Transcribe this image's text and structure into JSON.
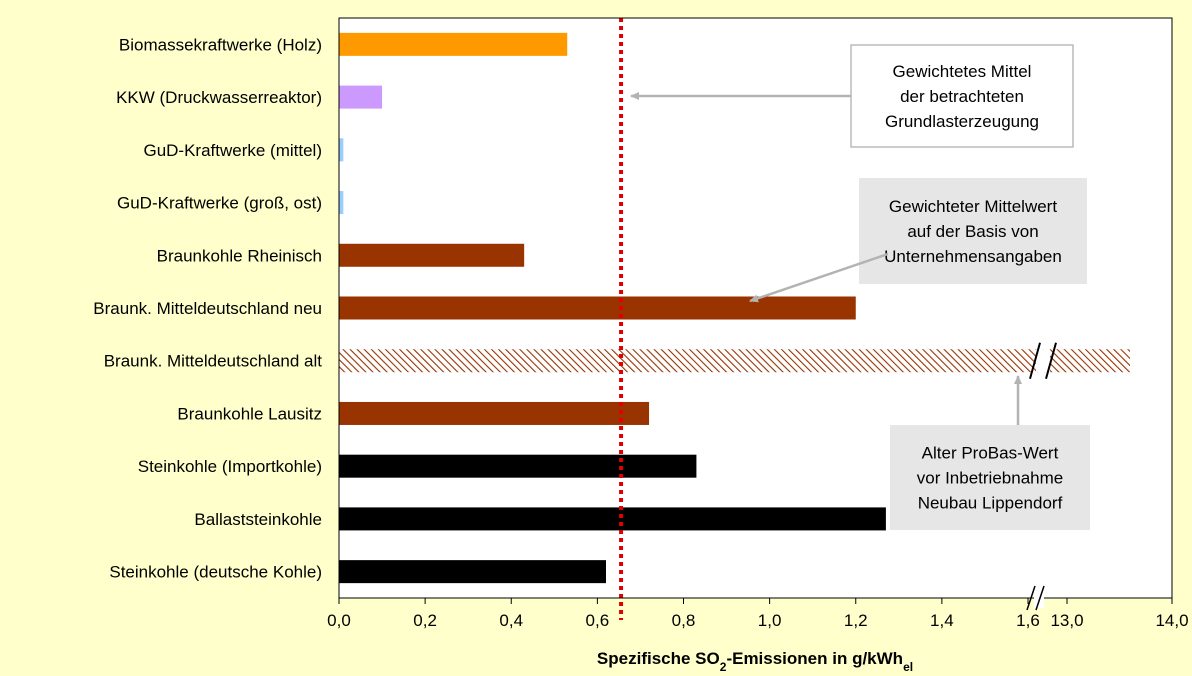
{
  "chart_data": {
    "type": "bar",
    "orientation": "horizontal",
    "xlabel": "Spezifische SO",
    "xlabel_sub": "2",
    "xlabel_rest": "-Emissionen in g/kWh",
    "xlabel_unit_sub": "el",
    "axis_break": "between 1.6 and 13.0",
    "x_ticks": [
      "0,0",
      "0,2",
      "0,4",
      "0,6",
      "0,8",
      "1,0",
      "1,2",
      "1,4",
      "1,6",
      "13,0",
      "14,0"
    ],
    "xlim": [
      0,
      14.0
    ],
    "grid": false,
    "categories": [
      "Biomassekraftwerke (Holz)",
      "KKW (Druckwasserreaktor)",
      "GuD-Kraftwerke (mittel)",
      "GuD-Kraftwerke (groß, ost)",
      "Braunkohle Rheinisch",
      "Braunk. Mitteldeutschland neu",
      "Braunk. Mitteldeutschland alt",
      "Braunkohle Lausitz",
      "Steinkohle (Importkohle)",
      "Ballaststeinkohle",
      "Steinkohle (deutsche Kohle)"
    ],
    "values": [
      0.53,
      0.1,
      0.01,
      0.01,
      0.43,
      1.2,
      13.6,
      0.72,
      0.83,
      1.27,
      0.62
    ],
    "bar_colors": [
      "#ff9900",
      "#cc99ff",
      "#99ccff",
      "#99ccff",
      "#993300",
      "#993300",
      "#993300",
      "#993300",
      "#000000",
      "#000000",
      "#000000"
    ],
    "hatched": [
      false,
      false,
      false,
      false,
      false,
      false,
      true,
      false,
      false,
      false,
      false
    ],
    "reference_line": {
      "value": 0.655,
      "color": "#e00000",
      "style": "dotted"
    },
    "annotations": [
      {
        "lines": [
          "Gewichtetes Mittel",
          "der betrachteten",
          "Grundlasterzeugung"
        ],
        "background": "#ffffff",
        "target": "reference_line"
      },
      {
        "lines": [
          "Gewichteter Mittelwert",
          "auf der Basis von",
          "Unternehmensangaben"
        ],
        "background": "#e6e6e6",
        "target": "Braunk. Mitteldeutschland neu"
      },
      {
        "lines": [
          "Alter ProBas-Wert",
          "vor Inbetriebnahme",
          "Neubau Lippendorf"
        ],
        "background": "#e6e6e6",
        "target": "Braunk. Mitteldeutschland alt"
      }
    ]
  }
}
